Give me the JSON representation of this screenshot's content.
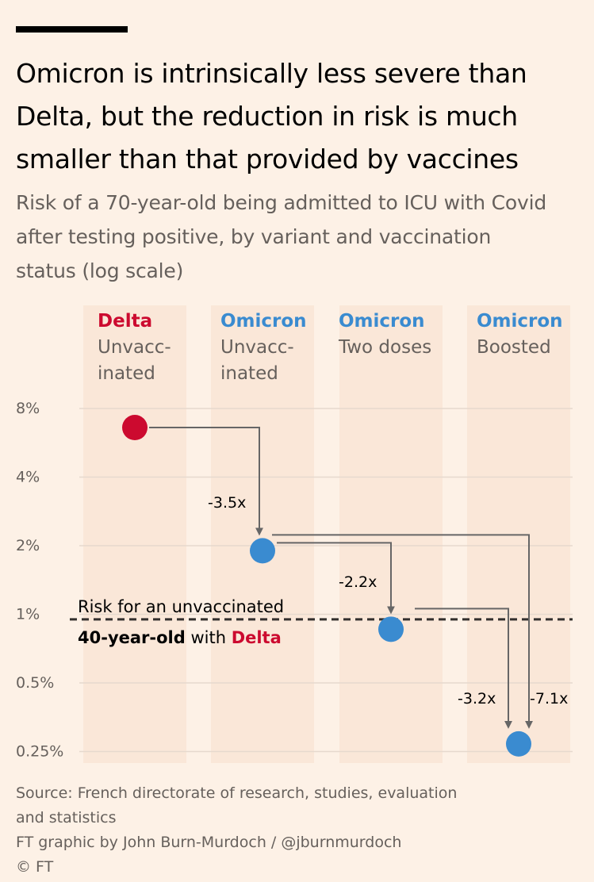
{
  "title": "Omicron is intrinsically less severe than Delta, but the reduction in risk is much smaller than that provided by vaccines",
  "subtitle": "Risk of a 70-year-old being admitted to ICU with Covid after testing positive, by variant and vaccination status (log scale)",
  "colors": {
    "delta": "#cc0a2f",
    "omicron": "#3a8bd0",
    "background": "#fdf1e6",
    "column_band": "#fae7d8",
    "grid": "#e6d9ce",
    "arrow": "#666666",
    "reference_line": "#33302e"
  },
  "chart_data": {
    "type": "scatter",
    "y_scale": "log",
    "ylim": [
      0.21,
      10.0
    ],
    "y_ticks": [
      8,
      4,
      2,
      1,
      0.5,
      0.25
    ],
    "y_tick_labels": [
      "8%",
      "4%",
      "2%",
      "1%",
      "0.5%",
      "0.25%"
    ],
    "grid": true,
    "categories": [
      {
        "variant": "Delta",
        "status_line1": "Unvacc-",
        "status_line2": "inated",
        "color": "delta",
        "value": 6.6
      },
      {
        "variant": "Omicron",
        "status_line1": "Unvacc-",
        "status_line2": "inated",
        "color": "omicron",
        "value": 1.9
      },
      {
        "variant": "Omicron",
        "status_line1": "Two doses",
        "status_line2": "",
        "color": "omicron",
        "value": 0.86
      },
      {
        "variant": "Omicron",
        "status_line1": "Boosted",
        "status_line2": "",
        "color": "omicron",
        "value": 0.27
      }
    ],
    "arrows": [
      {
        "from": 0,
        "to": 1,
        "label": "-3.5x"
      },
      {
        "from": 1,
        "to": 2,
        "label": "-2.2x"
      },
      {
        "from": 2,
        "to": 3,
        "label": "-3.2x"
      },
      {
        "from": 1,
        "to": 3,
        "label": "-7.1x"
      }
    ],
    "reference": {
      "value": 0.95,
      "line1": "Risk for an unvaccinated",
      "line2_bold": "40-year-old",
      "line2_mid": " with ",
      "line2_highlight": "Delta"
    }
  },
  "source": {
    "line1": "Source: French directorate of research, studies, evaluation",
    "line2": "and statistics",
    "line3": "FT graphic by John Burn-Murdoch / @jburnmurdoch",
    "line4": "© FT"
  }
}
